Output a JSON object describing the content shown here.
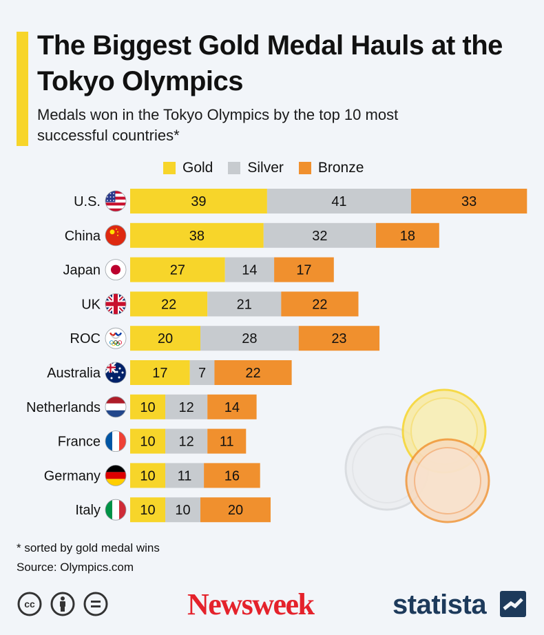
{
  "title": "The Biggest Gold Medal Hauls at the Tokyo Olympics",
  "subtitle": "Medals won in the Tokyo Olympics by the top 10 most successful countries*",
  "footnote": "* sorted by gold medal wins",
  "source": "Source: Olympics.com",
  "brands": {
    "newsweek": "Newsweek",
    "statista": "statista"
  },
  "colors": {
    "gold": "#f7d52a",
    "silver": "#c7cbcf",
    "bronze": "#f0902e",
    "accent": "#f7d52a"
  },
  "license_icons": [
    "creative-commons-icon",
    "attribution-icon",
    "no-derivatives-icon"
  ],
  "chart_data": {
    "type": "bar",
    "orientation": "horizontal",
    "stacked": true,
    "categories": [
      "U.S.",
      "China",
      "Japan",
      "UK",
      "ROC",
      "Australia",
      "Netherlands",
      "France",
      "Germany",
      "Italy"
    ],
    "flags": [
      "us-flag-icon",
      "china-flag-icon",
      "japan-flag-icon",
      "uk-flag-icon",
      "roc-flag-icon",
      "australia-flag-icon",
      "netherlands-flag-icon",
      "france-flag-icon",
      "germany-flag-icon",
      "italy-flag-icon"
    ],
    "series": [
      {
        "name": "Gold",
        "color": "#f7d52a",
        "values": [
          39,
          38,
          27,
          22,
          20,
          17,
          10,
          10,
          10,
          10
        ]
      },
      {
        "name": "Silver",
        "color": "#c7cbcf",
        "values": [
          41,
          32,
          14,
          21,
          28,
          7,
          12,
          12,
          11,
          10
        ]
      },
      {
        "name": "Bronze",
        "color": "#f0902e",
        "values": [
          33,
          18,
          17,
          22,
          23,
          22,
          14,
          11,
          16,
          20
        ]
      }
    ],
    "legend": "top",
    "grid": false
  }
}
